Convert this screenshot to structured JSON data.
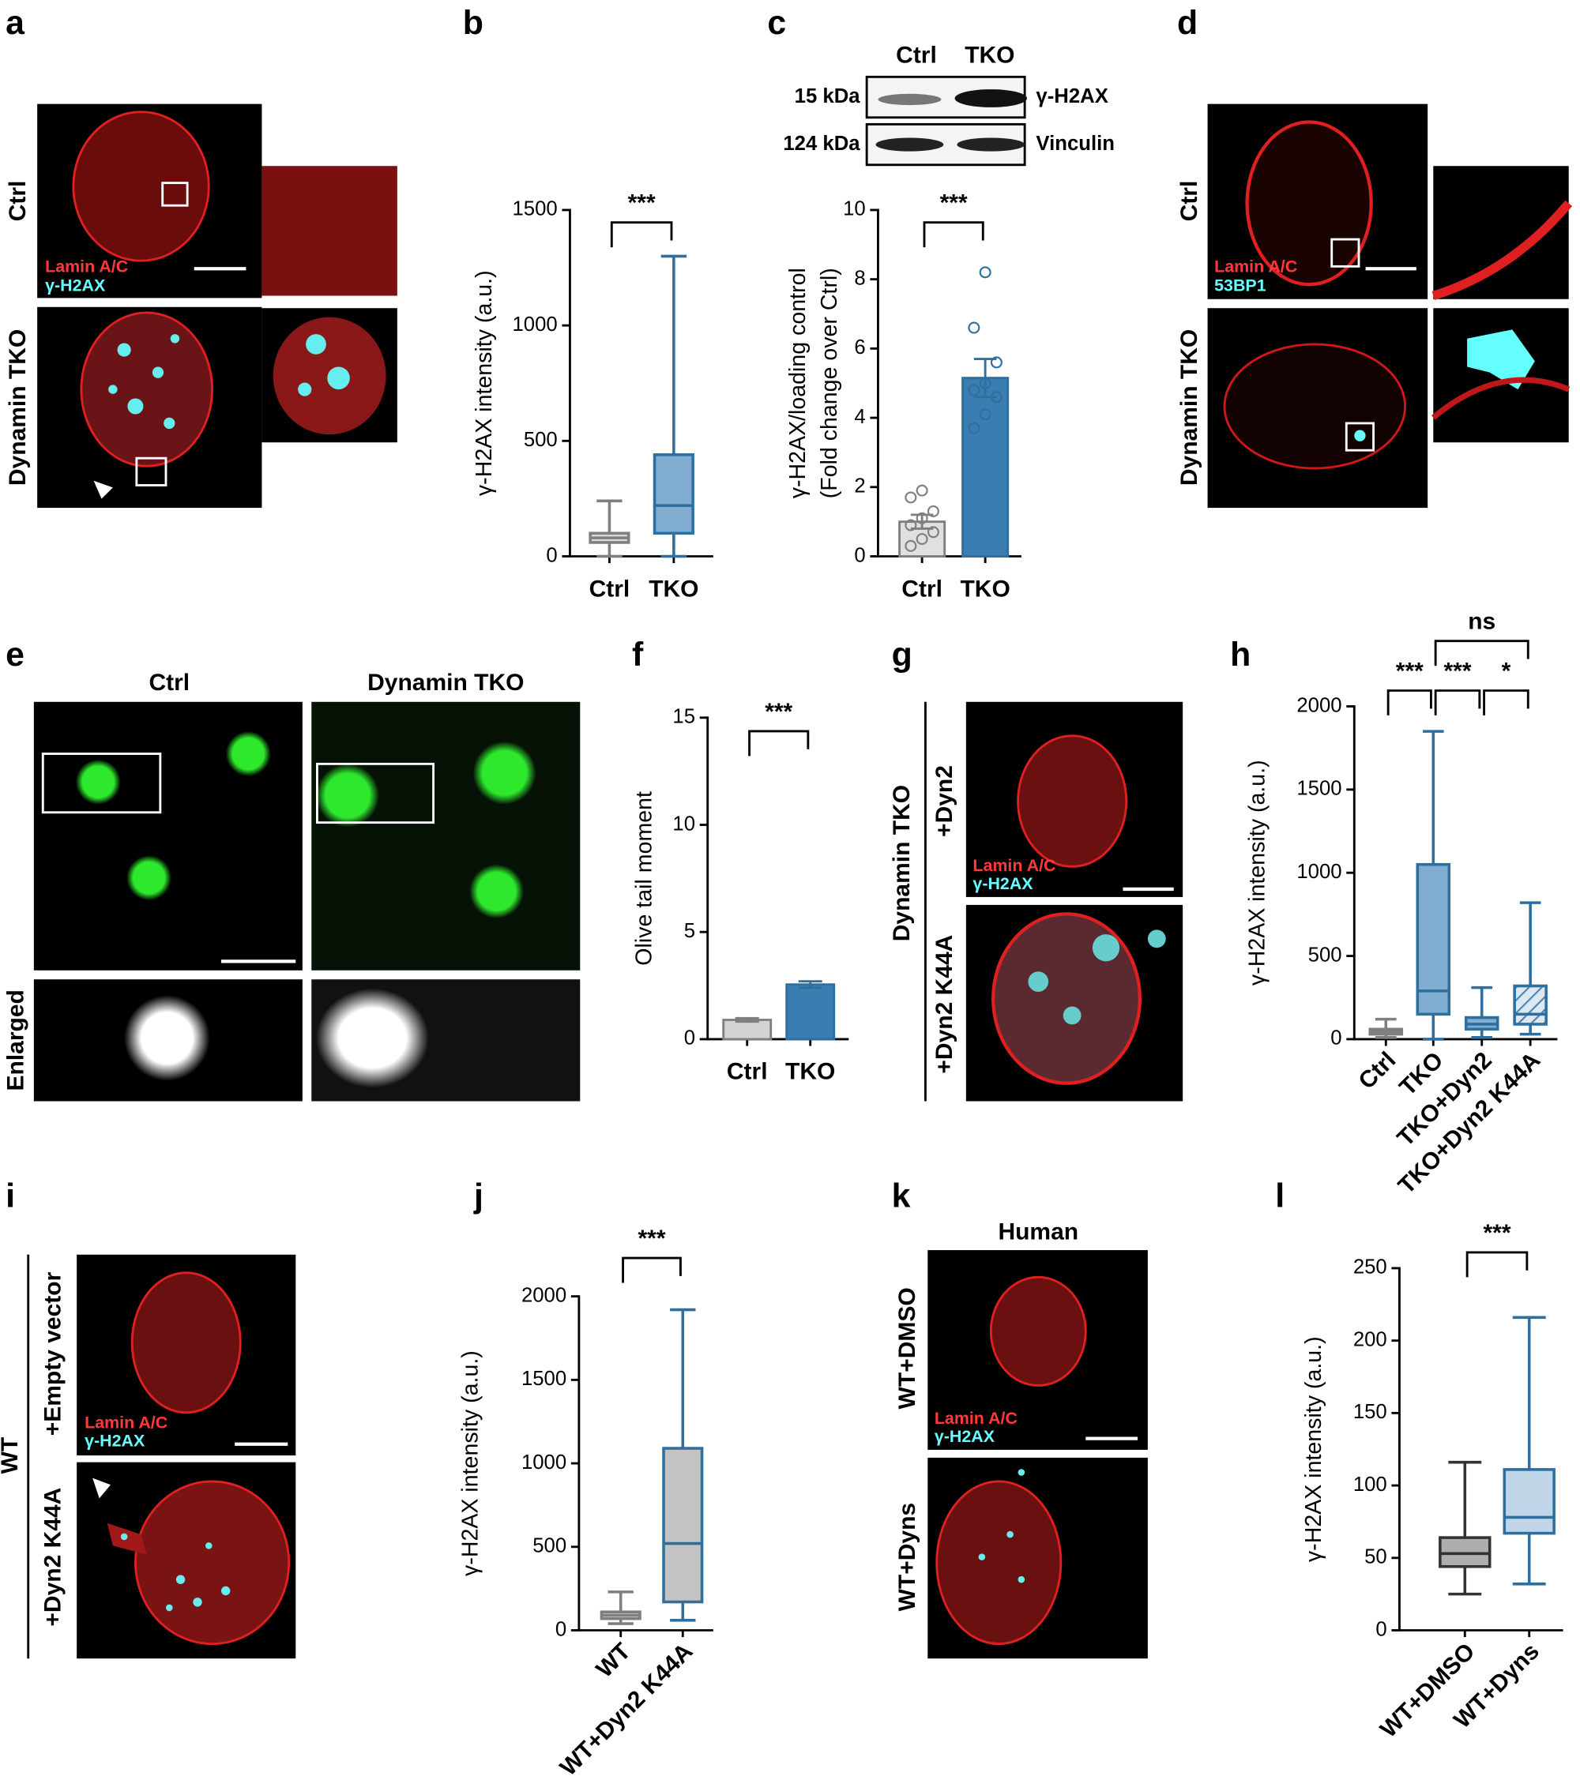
{
  "panels": {
    "a": {
      "letter": "a",
      "rows": [
        "Ctrl",
        "Dynamin TKO"
      ],
      "stain": [
        "Lamin A/C",
        "γ-H2AX"
      ]
    },
    "d": {
      "letter": "d",
      "rows": [
        "Ctrl",
        "Dynamin TKO"
      ],
      "stain": [
        "Lamin A/C",
        "53BP1"
      ]
    },
    "e": {
      "letter": "e",
      "columns": [
        "Ctrl",
        "Dynamin TKO"
      ],
      "row": "Enlarged"
    },
    "g": {
      "letter": "g",
      "group": "Dynamin TKO",
      "rows": [
        "+Dyn2",
        "+Dyn2 K44A"
      ],
      "stain": [
        "Lamin A/C",
        "γ-H2AX"
      ]
    },
    "i": {
      "letter": "i",
      "group": "WT",
      "rows": [
        "+Empty vector",
        "+Dyn2 K44A"
      ],
      "stain": [
        "Lamin A/C",
        "γ-H2AX"
      ]
    },
    "k": {
      "letter": "k",
      "title": "Human",
      "rows": [
        "WT+DMSO",
        "WT+Dyns"
      ],
      "stain": [
        "Lamin A/C",
        "γ-H2AX"
      ]
    }
  },
  "blot": {
    "lanes": [
      "Ctrl",
      "TKO"
    ],
    "rows": [
      {
        "size": "15 kDa",
        "protein": "γ-H2AX"
      },
      {
        "size": "124 kDa",
        "protein": "Vinculin"
      }
    ]
  },
  "chart_data": [
    {
      "type": "box",
      "panel": "b",
      "y_label": [
        "γ-H2AX intensity (a.u.)"
      ],
      "categories": [
        "Ctrl",
        "TKO"
      ],
      "boxes": [
        {
          "min": 0,
          "q1": 60,
          "median": 80,
          "q3": 100,
          "max": 240,
          "color": "#7f7f7f",
          "fill": "#d3d3d3"
        },
        {
          "min": 0,
          "q1": 100,
          "median": 220,
          "q3": 440,
          "max": 1300,
          "color": "#2f6f9f",
          "fill": "#6a9fc8"
        }
      ],
      "ylim": [
        0,
        1500
      ],
      "yticks": [
        0,
        500,
        1000,
        1500
      ],
      "comparisons": [
        {
          "from": 0,
          "to": 1,
          "label": "***"
        }
      ]
    },
    {
      "type": "bar",
      "panel": "c",
      "y_label": [
        "γ-H2AX/loading control",
        "(Fold change over Ctrl)"
      ],
      "categories": [
        "Ctrl",
        "TKO"
      ],
      "values": [
        1.0,
        5.15
      ],
      "errors": [
        0.2,
        0.55
      ],
      "colors": [
        "#e0e0e0",
        "#3a7db0"
      ],
      "edge_colors": [
        "#7f7f7f",
        "#2f6f9f"
      ],
      "points": [
        [
          0.3,
          0.5,
          0.7,
          0.9,
          1.1,
          1.3,
          1.7,
          1.9
        ],
        [
          3.7,
          4.1,
          4.6,
          4.8,
          5.0,
          5.6,
          6.6,
          8.2
        ]
      ],
      "ylim": [
        0,
        10
      ],
      "yticks": [
        0,
        2,
        4,
        6,
        8,
        10
      ],
      "comparisons": [
        {
          "from": 0,
          "to": 1,
          "label": "***"
        }
      ]
    },
    {
      "type": "bar",
      "panel": "f",
      "y_label": [
        "Olive tail moment"
      ],
      "categories": [
        "Ctrl",
        "TKO"
      ],
      "values": [
        0.9,
        2.55
      ],
      "errors": [
        0.08,
        0.15
      ],
      "colors": [
        "#d3d3d3",
        "#3a7db0"
      ],
      "edge_colors": [
        "#7f7f7f",
        "#2f6f9f"
      ],
      "ylim": [
        0,
        15
      ],
      "yticks": [
        0,
        5,
        10,
        15
      ],
      "comparisons": [
        {
          "from": 0,
          "to": 1,
          "label": "***"
        }
      ]
    },
    {
      "type": "box",
      "panel": "h",
      "y_label": [
        "γ-H2AX intensity (a.u.)"
      ],
      "categories": [
        "Ctrl",
        "TKO",
        "TKO+Dyn2",
        "TKO+Dyn2 K44A"
      ],
      "boxes": [
        {
          "min": 10,
          "q1": 30,
          "median": 45,
          "q3": 60,
          "max": 120,
          "color": "#7f7f7f",
          "fill": "#d3d3d3"
        },
        {
          "min": 0,
          "q1": 150,
          "median": 290,
          "q3": 1050,
          "max": 1850,
          "color": "#2f6f9f",
          "fill": "#6a9fc8"
        },
        {
          "min": 10,
          "q1": 60,
          "median": 90,
          "q3": 130,
          "max": 310,
          "color": "#2f6f9f",
          "fill": "#6a9fc8"
        },
        {
          "min": 30,
          "q1": 90,
          "median": 150,
          "q3": 320,
          "max": 820,
          "color": "#2f6f9f",
          "fill": "#b5cfe4",
          "hatch": true
        }
      ],
      "ylim": [
        0,
        2000
      ],
      "yticks": [
        0,
        500,
        1000,
        1500,
        2000
      ],
      "comparisons": [
        {
          "from": 0,
          "to": 1,
          "label": "***"
        },
        {
          "from": 1,
          "to": 2,
          "label": "***"
        },
        {
          "from": 2,
          "to": 3,
          "label": "*"
        },
        {
          "from": 1,
          "to": 3,
          "label": "ns"
        }
      ]
    },
    {
      "type": "box",
      "panel": "j",
      "y_label": [
        "γ-H2AX intensity (a.u.)"
      ],
      "categories": [
        "WT",
        "WT+Dyn2 K44A"
      ],
      "boxes": [
        {
          "min": 40,
          "q1": 70,
          "median": 90,
          "q3": 110,
          "max": 230,
          "color": "#7f7f7f",
          "fill": "#d3d3d3"
        },
        {
          "min": 60,
          "q1": 170,
          "median": 520,
          "q3": 1090,
          "max": 1920,
          "color": "#2f6f9f",
          "fill": "#b8b8b8"
        }
      ],
      "ylim": [
        0,
        2000
      ],
      "yticks": [
        0,
        500,
        1000,
        1500,
        2000
      ],
      "comparisons": [
        {
          "from": 0,
          "to": 1,
          "label": "***"
        }
      ]
    },
    {
      "type": "box",
      "panel": "l",
      "y_label": [
        "γ-H2AX intensity (a.u.)"
      ],
      "categories": [
        "WT+DMSO",
        "WT+Dyns"
      ],
      "boxes": [
        {
          "min": 25,
          "q1": 44,
          "median": 53,
          "q3": 64,
          "max": 116,
          "color": "#333333",
          "fill": "#a0a0a0"
        },
        {
          "min": 32,
          "q1": 67,
          "median": 78,
          "q3": 111,
          "max": 216,
          "color": "#2f6f9f",
          "fill": "#b5cfe4"
        }
      ],
      "ylim": [
        0,
        250
      ],
      "yticks": [
        0,
        50,
        100,
        150,
        200,
        250
      ],
      "comparisons": [
        {
          "from": 0,
          "to": 1,
          "label": "***"
        }
      ]
    }
  ]
}
